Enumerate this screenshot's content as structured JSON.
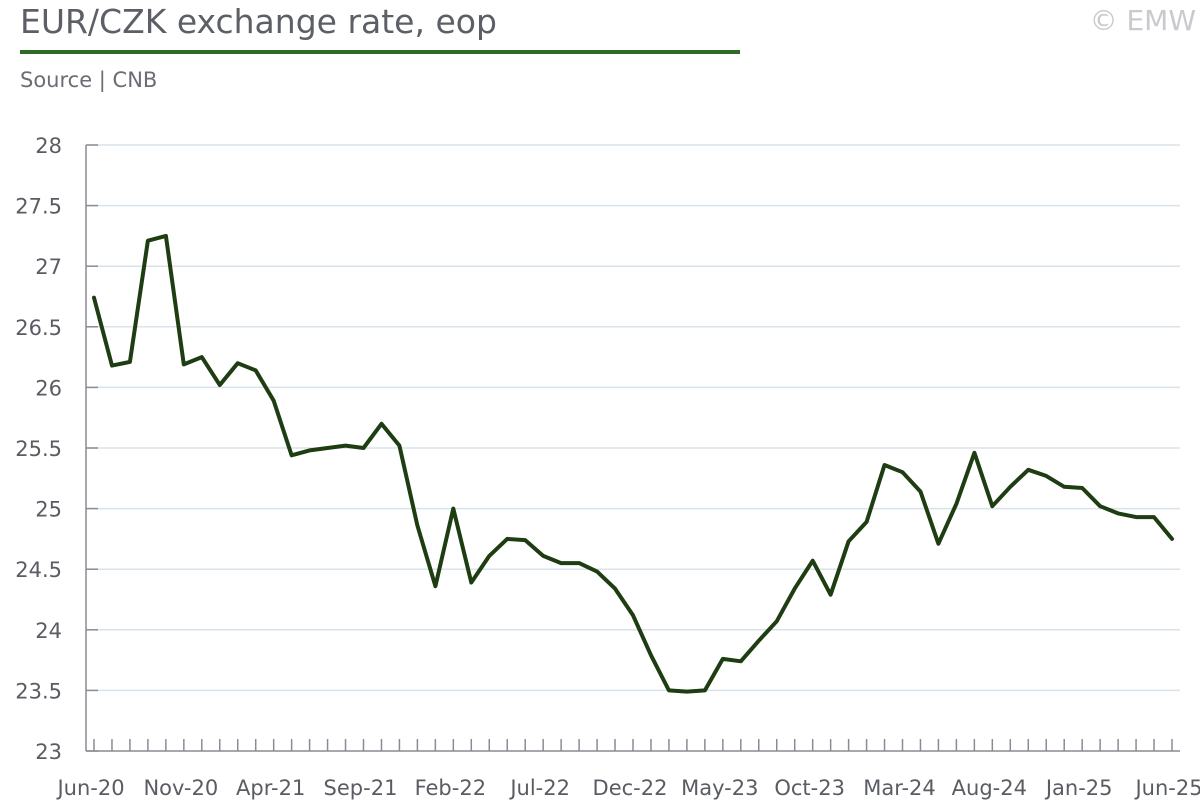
{
  "title": "EUR/CZK exchange rate, eop",
  "source": "Source | CNB",
  "copyright": "© EMW",
  "colors": {
    "line": "#1e3d12",
    "title_rule": "#2e6b26",
    "grid": "#d8e3ec",
    "axis": "#8a8c92"
  },
  "chart_data": {
    "type": "line",
    "title": "EUR/CZK exchange rate, eop",
    "xlabel": "",
    "ylabel": "",
    "ylim": [
      23,
      28
    ],
    "yticks": [
      "23",
      "23.5",
      "24",
      "24.5",
      "25",
      "25.5",
      "26",
      "26.5",
      "27",
      "27.5",
      "28"
    ],
    "x_tick_labels": [
      "Jun-20",
      "Nov-20",
      "Apr-21",
      "Sep-21",
      "Feb-22",
      "Jul-22",
      "Dec-22",
      "May-23",
      "Oct-23",
      "Mar-24",
      "Aug-24",
      "Jan-25",
      "Jun-25"
    ],
    "grid": true,
    "x": [
      "Jun-20",
      "Jul-20",
      "Aug-20",
      "Sep-20",
      "Oct-20",
      "Nov-20",
      "Dec-20",
      "Jan-21",
      "Feb-21",
      "Mar-21",
      "Apr-21",
      "May-21",
      "Jun-21",
      "Jul-21",
      "Aug-21",
      "Sep-21",
      "Oct-21",
      "Nov-21",
      "Dec-21",
      "Jan-22",
      "Feb-22",
      "Mar-22",
      "Apr-22",
      "May-22",
      "Jun-22",
      "Jul-22",
      "Aug-22",
      "Sep-22",
      "Oct-22",
      "Nov-22",
      "Dec-22",
      "Jan-23",
      "Feb-23",
      "Mar-23",
      "Apr-23",
      "May-23",
      "Jun-23",
      "Jul-23",
      "Aug-23",
      "Sep-23",
      "Oct-23",
      "Nov-23",
      "Dec-23",
      "Jan-24",
      "Feb-24",
      "Mar-24",
      "Apr-24",
      "May-24",
      "Jun-24",
      "Jul-24",
      "Aug-24",
      "Sep-24",
      "Oct-24",
      "Nov-24",
      "Dec-24",
      "Jan-25",
      "Feb-25",
      "Mar-25",
      "Apr-25",
      "May-25",
      "Jun-25"
    ],
    "series": [
      {
        "values": [
          26.74,
          26.18,
          26.21,
          27.21,
          27.25,
          26.19,
          26.25,
          26.02,
          26.2,
          26.14,
          25.89,
          25.44,
          25.48,
          25.5,
          25.52,
          25.5,
          25.7,
          25.52,
          24.86,
          24.36,
          25.0,
          24.39,
          24.61,
          24.75,
          24.74,
          24.61,
          24.55,
          24.55,
          24.48,
          24.34,
          24.12,
          23.79,
          23.5,
          23.49,
          23.5,
          23.76,
          23.74,
          23.91,
          24.07,
          24.34,
          24.57,
          24.29,
          24.73,
          24.89,
          25.36,
          25.3,
          25.14,
          24.71,
          25.04,
          25.46,
          25.02,
          25.18,
          25.32,
          25.27,
          25.18,
          25.17,
          25.02,
          24.96,
          24.93,
          24.93,
          24.75
        ]
      }
    ]
  }
}
